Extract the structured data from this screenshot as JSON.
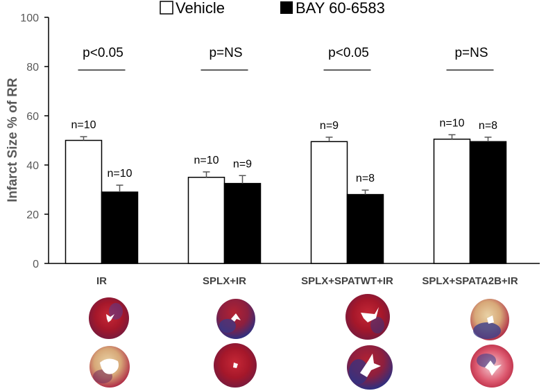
{
  "chart_data": {
    "type": "bar",
    "title": "",
    "xlabel": "",
    "ylabel": "Infarct Size % of RR",
    "ylim": [
      0,
      100
    ],
    "yticks": [
      0,
      20,
      40,
      60,
      80,
      100
    ],
    "grid": false,
    "legend_position": "top",
    "categories": [
      "IR",
      "SPLX+IR",
      "SPLX+SPATWT+IR",
      "SPLX+SPATA2B+IR"
    ],
    "series": [
      {
        "name": "Vehicle",
        "color": "#ffffff",
        "values": [
          50,
          35,
          49.5,
          50.5
        ],
        "errors": [
          1.5,
          2.2,
          1.8,
          1.8
        ],
        "n_labels": [
          "n=10",
          "n=10",
          "n=9",
          "n=10"
        ]
      },
      {
        "name": "BAY 60-6583",
        "color": "#000000",
        "values": [
          29,
          32.5,
          28,
          49.5
        ],
        "errors": [
          2.8,
          3.2,
          1.8,
          1.8
        ],
        "n_labels": [
          "n=10",
          "n=9",
          "n=8",
          "n=8"
        ]
      }
    ],
    "annotations": [
      "p<0.05",
      "p=NS",
      "p<0.05",
      "p=NS"
    ]
  },
  "heart_images": {
    "row1": [
      "heart-icon",
      "heart-icon",
      "heart-icon",
      "heart-icon"
    ],
    "row2": [
      "heart-icon",
      "heart-icon",
      "heart-icon",
      "heart-icon"
    ]
  }
}
